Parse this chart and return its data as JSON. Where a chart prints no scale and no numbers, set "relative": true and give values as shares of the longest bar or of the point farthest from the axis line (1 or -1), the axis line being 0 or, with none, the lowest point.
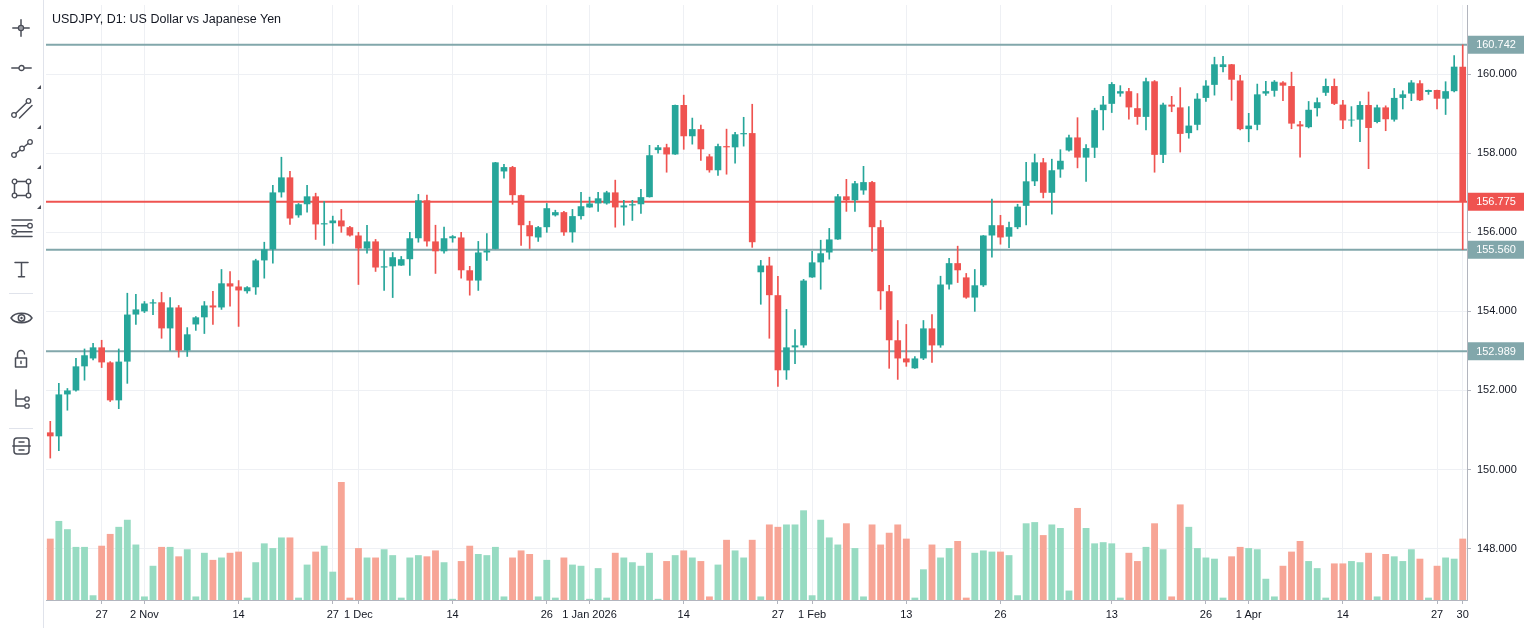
{
  "chart_data": [
    {
      "type": "candlestick",
      "title": "USDJPY, D1: US Dollar vs Japanese Yen",
      "categories": [
        null,
        null,
        null,
        null,
        null,
        null,
        "27",
        null,
        null,
        null,
        null,
        "2 Nov",
        null,
        null,
        null,
        null,
        null,
        null,
        null,
        null,
        null,
        null,
        "14",
        null,
        null,
        null,
        null,
        null,
        null,
        null,
        null,
        null,
        null,
        "27",
        null,
        null,
        "1 Dec",
        null,
        null,
        null,
        null,
        null,
        null,
        null,
        null,
        null,
        null,
        "14",
        null,
        null,
        null,
        null,
        null,
        null,
        null,
        null,
        null,
        null,
        "26",
        null,
        null,
        null,
        null,
        "1 Jan 2026",
        null,
        null,
        null,
        null,
        null,
        null,
        null,
        null,
        null,
        null,
        "14",
        null,
        null,
        null,
        null,
        null,
        null,
        null,
        null,
        null,
        null,
        "27",
        null,
        null,
        null,
        "1 Feb",
        null,
        null,
        null,
        null,
        null,
        null,
        null,
        null,
        null,
        null,
        "13",
        null,
        null,
        null,
        null,
        null,
        null,
        null,
        null,
        null,
        null,
        "26",
        null,
        null,
        null,
        null,
        null,
        null,
        null,
        null,
        null,
        null,
        null,
        null,
        "13",
        null,
        null,
        null,
        null,
        null,
        null,
        null,
        null,
        null,
        null,
        "26",
        null,
        null,
        null,
        null,
        "1 Apr",
        null,
        null,
        null,
        null,
        null,
        null,
        null,
        null,
        null,
        null,
        "14",
        null,
        null,
        null,
        null,
        null,
        null,
        null,
        null,
        null,
        null,
        "27",
        null,
        null,
        "30"
      ],
      "ohlc": [
        [
          150.94,
          151.22,
          150.29,
          150.84
        ],
        [
          150.84,
          152.18,
          150.48,
          151.9
        ],
        [
          151.9,
          152.05,
          151.5,
          152.0
        ],
        [
          152.0,
          152.81,
          151.98,
          152.61
        ],
        [
          152.61,
          153.05,
          152.26,
          152.89
        ],
        [
          152.81,
          153.19,
          152.77,
          153.09
        ],
        [
          153.09,
          153.27,
          152.58,
          152.71
        ],
        [
          152.71,
          152.73,
          151.72,
          151.75
        ],
        [
          151.75,
          153.05,
          151.54,
          152.73
        ],
        [
          152.73,
          154.46,
          152.18,
          153.92
        ],
        [
          153.92,
          154.43,
          153.67,
          154.05
        ],
        [
          154.0,
          154.25,
          153.97,
          154.2
        ],
        [
          154.2,
          154.3,
          153.92,
          154.23
        ],
        [
          154.23,
          154.48,
          153.32,
          153.57
        ],
        [
          153.57,
          154.35,
          153.01,
          154.1
        ],
        [
          154.1,
          154.15,
          152.84,
          153.01
        ],
        [
          153.01,
          153.59,
          152.86,
          153.42
        ],
        [
          153.67,
          153.87,
          153.52,
          153.85
        ],
        [
          153.85,
          154.25,
          153.44,
          154.15
        ],
        [
          154.15,
          154.51,
          153.67,
          154.1
        ],
        [
          154.1,
          155.06,
          154.05,
          154.71
        ],
        [
          154.71,
          155.01,
          154.13,
          154.63
        ],
        [
          154.63,
          154.78,
          153.62,
          154.53
        ],
        [
          154.51,
          154.63,
          154.46,
          154.61
        ],
        [
          154.61,
          155.32,
          154.43,
          155.29
        ],
        [
          155.29,
          155.75,
          154.84,
          155.57
        ],
        [
          155.57,
          157.19,
          155.22,
          157.01
        ],
        [
          157.01,
          157.9,
          156.89,
          157.39
        ],
        [
          157.39,
          157.54,
          156.2,
          156.35
        ],
        [
          156.43,
          156.73,
          156.38,
          156.71
        ],
        [
          156.71,
          157.19,
          156.51,
          156.91
        ],
        [
          156.91,
          156.99,
          155.82,
          156.2
        ],
        [
          156.2,
          156.78,
          155.67,
          156.23
        ],
        [
          156.23,
          156.41,
          155.72,
          156.3
        ],
        [
          156.3,
          156.58,
          156.0,
          156.15
        ],
        [
          156.13,
          156.15,
          155.9,
          155.92
        ],
        [
          155.92,
          156.0,
          154.68,
          155.59
        ],
        [
          155.59,
          156.18,
          155.47,
          155.77
        ],
        [
          155.77,
          155.82,
          155.01,
          155.11
        ],
        [
          155.11,
          155.54,
          154.53,
          155.14
        ],
        [
          155.14,
          155.49,
          154.35,
          155.37
        ],
        [
          155.16,
          155.39,
          155.16,
          155.32
        ],
        [
          155.32,
          156.0,
          154.91,
          155.85
        ],
        [
          155.85,
          156.96,
          155.75,
          156.81
        ],
        [
          156.81,
          156.94,
          155.65,
          155.77
        ],
        [
          155.77,
          156.18,
          154.96,
          155.52
        ],
        [
          155.52,
          156.13,
          155.47,
          155.85
        ],
        [
          155.85,
          155.92,
          155.75,
          155.9
        ],
        [
          155.87,
          156.0,
          154.84,
          155.04
        ],
        [
          155.04,
          155.14,
          154.41,
          154.78
        ],
        [
          154.78,
          155.77,
          154.53,
          155.49
        ],
        [
          155.49,
          155.97,
          155.29,
          155.54
        ],
        [
          155.58,
          157.77,
          155.58,
          157.77
        ],
        [
          157.54,
          157.72,
          157.37,
          157.65
        ],
        [
          157.65,
          157.67,
          156.71,
          156.94
        ],
        [
          156.94,
          156.94,
          155.67,
          156.18
        ],
        [
          156.18,
          156.28,
          155.59,
          155.9
        ],
        [
          155.87,
          156.15,
          155.77,
          156.13
        ],
        [
          156.13,
          156.73,
          156.0,
          156.61
        ],
        [
          156.43,
          156.56,
          156.41,
          156.51
        ],
        [
          156.51,
          156.53,
          155.92,
          156.0
        ],
        [
          156.0,
          156.58,
          155.75,
          156.41
        ],
        [
          156.41,
          157.01,
          156.33,
          156.66
        ],
        [
          156.63,
          156.89,
          156.63,
          156.73
        ],
        [
          156.73,
          157.01,
          156.53,
          156.86
        ],
        [
          156.73,
          157.04,
          156.71,
          157.01
        ],
        [
          157.01,
          157.32,
          156.13,
          156.63
        ],
        [
          156.63,
          156.81,
          156.18,
          156.68
        ],
        [
          156.68,
          156.81,
          156.3,
          156.71
        ],
        [
          156.71,
          157.09,
          156.48,
          156.89
        ],
        [
          156.89,
          158.2,
          156.89,
          157.95
        ],
        [
          158.08,
          158.2,
          158.0,
          158.15
        ],
        [
          158.15,
          158.23,
          157.52,
          157.97
        ],
        [
          157.97,
          159.22,
          157.97,
          159.22
        ],
        [
          159.22,
          159.47,
          158.1,
          158.43
        ],
        [
          158.43,
          158.89,
          158.23,
          158.61
        ],
        [
          158.61,
          158.71,
          157.82,
          158.1
        ],
        [
          157.92,
          157.97,
          157.52,
          157.57
        ],
        [
          157.57,
          158.23,
          157.44,
          158.18
        ],
        [
          158.18,
          158.61,
          157.47,
          158.15
        ],
        [
          158.15,
          158.53,
          157.75,
          158.48
        ],
        [
          158.48,
          158.91,
          158.18,
          158.51
        ],
        [
          158.51,
          159.24,
          155.62,
          155.75
        ],
        [
          154.99,
          155.29,
          154.18,
          155.16
        ],
        [
          155.16,
          155.37,
          153.32,
          154.41
        ],
        [
          154.41,
          154.89,
          152.1,
          152.51
        ],
        [
          152.51,
          154.05,
          152.28,
          153.09
        ],
        [
          153.09,
          153.54,
          152.68,
          153.14
        ],
        [
          153.14,
          154.81,
          153.09,
          154.78
        ],
        [
          154.86,
          155.52,
          154.86,
          155.24
        ],
        [
          155.24,
          155.8,
          154.56,
          155.47
        ],
        [
          155.49,
          156.1,
          155.32,
          155.82
        ],
        [
          155.82,
          156.96,
          155.82,
          156.91
        ],
        [
          156.91,
          157.34,
          156.53,
          156.81
        ],
        [
          156.81,
          157.29,
          156.53,
          157.24
        ],
        [
          157.06,
          157.67,
          156.96,
          157.27
        ],
        [
          157.27,
          157.29,
          155.52,
          156.13
        ],
        [
          156.13,
          156.3,
          154.05,
          154.51
        ],
        [
          154.51,
          154.66,
          152.56,
          153.27
        ],
        [
          153.27,
          153.77,
          152.28,
          152.81
        ],
        [
          152.81,
          153.67,
          152.61,
          152.71
        ],
        [
          152.56,
          152.86,
          152.56,
          152.81
        ],
        [
          152.81,
          153.77,
          152.78,
          153.57
        ],
        [
          153.57,
          153.92,
          152.71,
          153.14
        ],
        [
          153.14,
          154.89,
          153.09,
          154.68
        ],
        [
          154.68,
          155.34,
          154.56,
          155.22
        ],
        [
          155.22,
          155.65,
          154.73,
          155.04
        ],
        [
          154.86,
          154.96,
          154.33,
          154.35
        ],
        [
          154.35,
          155.06,
          154.0,
          154.66
        ],
        [
          154.66,
          155.92,
          154.63,
          155.92
        ],
        [
          155.92,
          156.84,
          155.37,
          156.18
        ],
        [
          156.18,
          156.43,
          155.7,
          155.87
        ],
        [
          155.89,
          156.26,
          155.61,
          156.13
        ],
        [
          156.13,
          156.71,
          156.09,
          156.65
        ],
        [
          156.67,
          157.77,
          156.19,
          157.29
        ],
        [
          157.29,
          157.98,
          157.18,
          157.77
        ],
        [
          157.77,
          157.87,
          156.87,
          157.0
        ],
        [
          157.0,
          157.85,
          156.46,
          157.57
        ],
        [
          157.59,
          158.09,
          157.39,
          157.81
        ],
        [
          158.07,
          158.46,
          158.05,
          158.4
        ],
        [
          158.4,
          158.9,
          157.63,
          157.89
        ],
        [
          157.89,
          158.22,
          157.29,
          158.13
        ],
        [
          158.14,
          159.14,
          157.89,
          159.09
        ],
        [
          159.09,
          159.44,
          158.59,
          159.23
        ],
        [
          159.25,
          159.79,
          159.03,
          159.75
        ],
        [
          159.51,
          159.71,
          159.44,
          159.57
        ],
        [
          159.57,
          159.64,
          158.86,
          159.16
        ],
        [
          159.14,
          159.51,
          158.73,
          158.92
        ],
        [
          158.92,
          159.9,
          158.59,
          159.82
        ],
        [
          159.82,
          159.84,
          157.52,
          157.96
        ],
        [
          157.96,
          159.27,
          157.76,
          159.23
        ],
        [
          159.23,
          159.44,
          159.05,
          159.18
        ],
        [
          159.16,
          159.66,
          158.03,
          158.49
        ],
        [
          158.51,
          159.18,
          158.38,
          158.7
        ],
        [
          158.72,
          159.51,
          158.59,
          159.38
        ],
        [
          159.4,
          159.84,
          159.31,
          159.71
        ],
        [
          159.73,
          160.43,
          159.47,
          160.25
        ],
        [
          160.18,
          160.45,
          160.06,
          160.25
        ],
        [
          160.25,
          160.25,
          159.34,
          159.86
        ],
        [
          159.84,
          159.97,
          158.59,
          158.61
        ],
        [
          158.61,
          159.01,
          158.29,
          158.7
        ],
        [
          158.72,
          159.75,
          158.59,
          159.49
        ],
        [
          159.51,
          159.82,
          159.46,
          159.57
        ],
        [
          159.58,
          159.84,
          159.44,
          159.81
        ],
        [
          159.79,
          159.81,
          159.33,
          159.71
        ],
        [
          159.7,
          160.05,
          158.62,
          158.75
        ],
        [
          158.73,
          158.81,
          157.9,
          158.68
        ],
        [
          158.66,
          159.31,
          158.64,
          159.1
        ],
        [
          159.14,
          159.4,
          158.94,
          159.29
        ],
        [
          159.53,
          159.88,
          159.46,
          159.7
        ],
        [
          159.7,
          159.88,
          159.23,
          159.25
        ],
        [
          159.23,
          159.34,
          158.62,
          158.83
        ],
        [
          158.83,
          159.18,
          158.68,
          158.85
        ],
        [
          158.85,
          159.31,
          158.29,
          159.22
        ],
        [
          159.22,
          159.55,
          157.61,
          158.64
        ],
        [
          158.79,
          159.22,
          158.77,
          159.16
        ],
        [
          159.16,
          159.2,
          158.57,
          158.86
        ],
        [
          158.85,
          159.64,
          158.81,
          159.4
        ],
        [
          159.4,
          159.58,
          159.12,
          159.49
        ],
        [
          159.51,
          159.84,
          159.33,
          159.79
        ],
        [
          159.77,
          159.84,
          159.33,
          159.34
        ],
        [
          159.55,
          159.6,
          159.49,
          159.6
        ],
        [
          159.6,
          159.6,
          159.12,
          159.38
        ],
        [
          159.38,
          159.81,
          158.98,
          159.57
        ],
        [
          159.57,
          160.47,
          159.55,
          160.19
        ],
        [
          160.19,
          160.742,
          155.56,
          156.775
        ]
      ],
      "colors": [
        "#ef5350",
        "#26a69a",
        "#26a69a",
        "#26a69a",
        "#26a69a",
        "#26a69a",
        "#ef5350",
        "#ef5350",
        "#26a69a",
        "#26a69a",
        "#26a69a",
        "#26a69a",
        "#26a69a",
        "#ef5350",
        "#26a69a",
        "#ef5350",
        "#26a69a",
        "#26a69a",
        "#26a69a",
        "#ef5350",
        "#26a69a",
        "#ef5350",
        "#ef5350",
        "#26a69a",
        "#26a69a",
        "#26a69a",
        "#26a69a",
        "#26a69a",
        "#ef5350",
        "#26a69a",
        "#26a69a",
        "#ef5350",
        "#26a69a",
        "#26a69a",
        "#ef5350",
        "#ef5350",
        "#ef5350",
        "#26a69a",
        "#ef5350",
        "#26a69a",
        "#26a69a",
        "#26a69a",
        "#26a69a",
        "#26a69a",
        "#ef5350",
        "#ef5350",
        "#26a69a",
        "#26a69a",
        "#ef5350",
        "#ef5350",
        "#26a69a",
        "#26a69a",
        "#26a69a",
        "#26a69a",
        "#ef5350",
        "#ef5350",
        "#ef5350",
        "#26a69a",
        "#26a69a",
        "#26a69a",
        "#ef5350",
        "#26a69a",
        "#26a69a",
        "#26a69a",
        "#26a69a",
        "#26a69a",
        "#ef5350",
        "#26a69a",
        "#26a69a",
        "#26a69a",
        "#26a69a",
        "#26a69a",
        "#ef5350",
        "#26a69a",
        "#ef5350",
        "#26a69a",
        "#ef5350",
        "#ef5350",
        "#26a69a",
        "#ef5350",
        "#26a69a",
        "#26a69a",
        "#ef5350",
        "#26a69a",
        "#ef5350",
        "#ef5350",
        "#26a69a",
        "#26a69a",
        "#26a69a",
        "#26a69a",
        "#26a69a",
        "#26a69a",
        "#26a69a",
        "#ef5350",
        "#26a69a",
        "#26a69a",
        "#ef5350",
        "#ef5350",
        "#ef5350",
        "#ef5350",
        "#ef5350",
        "#26a69a",
        "#26a69a",
        "#ef5350",
        "#26a69a",
        "#26a69a",
        "#ef5350",
        "#ef5350",
        "#26a69a",
        "#26a69a",
        "#26a69a",
        "#ef5350",
        "#26a69a",
        "#26a69a",
        "#26a69a",
        "#26a69a",
        "#ef5350",
        "#26a69a",
        "#26a69a",
        "#26a69a",
        "#ef5350",
        "#26a69a",
        "#26a69a",
        "#26a69a",
        "#26a69a",
        "#26a69a",
        "#ef5350",
        "#ef5350",
        "#26a69a",
        "#ef5350",
        "#26a69a",
        "#ef5350",
        "#ef5350",
        "#26a69a",
        "#26a69a",
        "#26a69a",
        "#26a69a",
        "#26a69a",
        "#ef5350",
        "#ef5350",
        "#26a69a",
        "#26a69a",
        "#26a69a",
        "#26a69a",
        "#ef5350",
        "#ef5350",
        "#ef5350",
        "#26a69a",
        "#26a69a",
        "#26a69a",
        "#ef5350",
        "#ef5350",
        "#26a69a",
        "#26a69a",
        "#ef5350",
        "#26a69a",
        "#ef5350",
        "#26a69a",
        "#26a69a",
        "#26a69a",
        "#ef5350",
        "#26a69a",
        "#ef5350",
        "#26a69a",
        "#26a69a",
        "#ef5350"
      ],
      "ylim": [
        146.7,
        161.75
      ],
      "yticks": [
        {
          "value": 148,
          "label": "148.000"
        },
        {
          "value": 150,
          "label": "150.000"
        },
        {
          "value": 152,
          "label": "152.000"
        },
        {
          "value": 154,
          "label": "154.000"
        },
        {
          "value": 156,
          "label": "156.000"
        },
        {
          "value": 158,
          "label": "158.000"
        },
        {
          "value": 160,
          "label": "160.000"
        }
      ],
      "grid": true,
      "ref_lines": [
        {
          "axis": "y",
          "value": 160.742,
          "label": "160.742",
          "color": "#82a7ab"
        },
        {
          "axis": "y",
          "value": 156.775,
          "label": "156.775",
          "color": "#ef5350"
        },
        {
          "axis": "y",
          "value": 155.56,
          "label": "155.560",
          "color": "#82a7ab"
        },
        {
          "axis": "y",
          "value": 152.989,
          "label": "152.989",
          "color": "#82a7ab"
        }
      ]
    },
    {
      "type": "bar",
      "relative": true,
      "categories": [
        null,
        null,
        null,
        null,
        null,
        null,
        null,
        null,
        null,
        null,
        null,
        null,
        null,
        null,
        null,
        null,
        null,
        null,
        null,
        null,
        null,
        null,
        null,
        null,
        null,
        null,
        null,
        null,
        null,
        null,
        null,
        null,
        null,
        null,
        null,
        null,
        null,
        null,
        null,
        null,
        null,
        null,
        null,
        null,
        null,
        null,
        null,
        null,
        null,
        null,
        null,
        null,
        null,
        null,
        null,
        null,
        null,
        null,
        null,
        null,
        null,
        null,
        null,
        null,
        null,
        null,
        null,
        null,
        null,
        null,
        null,
        null,
        null,
        null,
        null,
        null,
        null,
        null,
        null,
        null,
        null,
        null,
        null,
        null,
        null,
        null,
        null,
        null,
        null,
        null,
        null,
        null,
        null,
        null,
        null,
        null,
        null,
        null,
        null,
        null,
        null,
        null,
        null,
        null,
        null,
        null,
        null,
        null,
        null,
        null,
        null,
        null,
        null,
        null,
        null,
        null,
        null,
        null,
        null,
        null,
        null,
        null,
        null,
        null,
        null,
        null,
        null,
        null,
        null,
        null,
        null,
        null,
        null,
        null,
        null,
        null,
        null,
        null,
        null,
        null,
        null,
        null,
        null,
        null,
        null,
        null,
        null,
        null,
        null,
        null,
        null,
        null,
        null,
        null,
        null,
        null,
        null,
        null,
        null,
        null,
        null,
        null,
        null,
        null,
        null,
        null
      ],
      "values": [
        0.52,
        0.67,
        0.6,
        0.45,
        0.45,
        0.04,
        0.46,
        0.56,
        0.62,
        0.68,
        0.47,
        0.03,
        0.29,
        0.45,
        0.45,
        0.37,
        0.43,
        0.03,
        0.4,
        0.34,
        0.36,
        0.4,
        0.41,
        0.02,
        0.32,
        0.48,
        0.44,
        0.53,
        0.53,
        0.02,
        0.3,
        0.41,
        0.46,
        0.24,
        1,
        0.02,
        0.44,
        0.36,
        0.36,
        0.43,
        0.38,
        0.02,
        0.36,
        0.38,
        0.37,
        0.42,
        0.32,
        0.01,
        0.33,
        0.46,
        0.39,
        0.38,
        0.45,
        0.03,
        0.36,
        0.42,
        0.39,
        0.03,
        0.34,
        0.02,
        0.36,
        0.3,
        0.29,
        0.01,
        0.27,
        0.02,
        0.4,
        0.36,
        0.32,
        0.29,
        0.4,
        0.01,
        0.33,
        0.38,
        0.42,
        0.36,
        0.33,
        0.03,
        0.3,
        0.51,
        0.42,
        0.36,
        0.51,
        0.03,
        0.64,
        0.62,
        0.64,
        0.64,
        0.76,
        0.04,
        0.68,
        0.53,
        0.47,
        0.65,
        0.44,
        0.03,
        0.64,
        0.47,
        0.57,
        0.64,
        0.52,
        0.02,
        0.26,
        0.47,
        0.36,
        0.44,
        0.5,
        0.02,
        0.4,
        0.42,
        0.41,
        0.41,
        0.38,
        0.04,
        0.65,
        0.66,
        0.55,
        0.64,
        0.61,
        0.08,
        0.78,
        0.61,
        0.48,
        0.49,
        0.48,
        0.02,
        0.4,
        0.33,
        0.45,
        0.65,
        0.43,
        0.03,
        0.81,
        0.62,
        0.44,
        0.36,
        0.35,
        0.02,
        0.37,
        0.45,
        0.44,
        0.43,
        0.18,
        0.03,
        0.29,
        0.41,
        0.5,
        0.33,
        0.27,
        0.02,
        0.31,
        0.31,
        0.33,
        0.32,
        0.4,
        0.03,
        0.39,
        0.37,
        0.33,
        0.43,
        0.35,
        0.02,
        0.29,
        0.36,
        0.35,
        0.52
      ],
      "colors": [
        "#f7a596",
        "#97dbc2",
        "#97dbc2",
        "#97dbc2",
        "#97dbc2",
        "#97dbc2",
        "#f7a596",
        "#f7a596",
        "#97dbc2",
        "#97dbc2",
        "#97dbc2",
        "#97dbc2",
        "#97dbc2",
        "#f7a596",
        "#97dbc2",
        "#f7a596",
        "#97dbc2",
        "#97dbc2",
        "#97dbc2",
        "#f7a596",
        "#97dbc2",
        "#f7a596",
        "#f7a596",
        "#97dbc2",
        "#97dbc2",
        "#97dbc2",
        "#97dbc2",
        "#97dbc2",
        "#f7a596",
        "#97dbc2",
        "#97dbc2",
        "#f7a596",
        "#97dbc2",
        "#97dbc2",
        "#f7a596",
        "#f7a596",
        "#f7a596",
        "#97dbc2",
        "#f7a596",
        "#97dbc2",
        "#97dbc2",
        "#97dbc2",
        "#97dbc2",
        "#97dbc2",
        "#f7a596",
        "#f7a596",
        "#97dbc2",
        "#97dbc2",
        "#f7a596",
        "#f7a596",
        "#97dbc2",
        "#97dbc2",
        "#97dbc2",
        "#97dbc2",
        "#f7a596",
        "#f7a596",
        "#f7a596",
        "#97dbc2",
        "#97dbc2",
        "#97dbc2",
        "#f7a596",
        "#97dbc2",
        "#97dbc2",
        "#97dbc2",
        "#97dbc2",
        "#97dbc2",
        "#f7a596",
        "#97dbc2",
        "#97dbc2",
        "#97dbc2",
        "#97dbc2",
        "#97dbc2",
        "#f7a596",
        "#97dbc2",
        "#f7a596",
        "#97dbc2",
        "#f7a596",
        "#f7a596",
        "#97dbc2",
        "#f7a596",
        "#97dbc2",
        "#97dbc2",
        "#f7a596",
        "#97dbc2",
        "#f7a596",
        "#f7a596",
        "#97dbc2",
        "#97dbc2",
        "#97dbc2",
        "#97dbc2",
        "#97dbc2",
        "#97dbc2",
        "#97dbc2",
        "#f7a596",
        "#97dbc2",
        "#97dbc2",
        "#f7a596",
        "#f7a596",
        "#f7a596",
        "#f7a596",
        "#f7a596",
        "#97dbc2",
        "#97dbc2",
        "#f7a596",
        "#97dbc2",
        "#97dbc2",
        "#f7a596",
        "#f7a596",
        "#97dbc2",
        "#97dbc2",
        "#97dbc2",
        "#f7a596",
        "#97dbc2",
        "#97dbc2",
        "#97dbc2",
        "#97dbc2",
        "#f7a596",
        "#97dbc2",
        "#97dbc2",
        "#97dbc2",
        "#f7a596",
        "#97dbc2",
        "#97dbc2",
        "#97dbc2",
        "#97dbc2",
        "#97dbc2",
        "#f7a596",
        "#f7a596",
        "#97dbc2",
        "#f7a596",
        "#97dbc2",
        "#f7a596",
        "#f7a596",
        "#97dbc2",
        "#97dbc2",
        "#97dbc2",
        "#97dbc2",
        "#97dbc2",
        "#f7a596",
        "#f7a596",
        "#97dbc2",
        "#97dbc2",
        "#97dbc2",
        "#97dbc2",
        "#f7a596",
        "#f7a596",
        "#f7a596",
        "#97dbc2",
        "#97dbc2",
        "#97dbc2",
        "#f7a596",
        "#f7a596",
        "#97dbc2",
        "#97dbc2",
        "#f7a596",
        "#97dbc2",
        "#f7a596",
        "#97dbc2",
        "#97dbc2",
        "#97dbc2",
        "#f7a596",
        "#97dbc2",
        "#f7a596",
        "#97dbc2",
        "#97dbc2",
        "#f7a596"
      ]
    }
  ]
}
